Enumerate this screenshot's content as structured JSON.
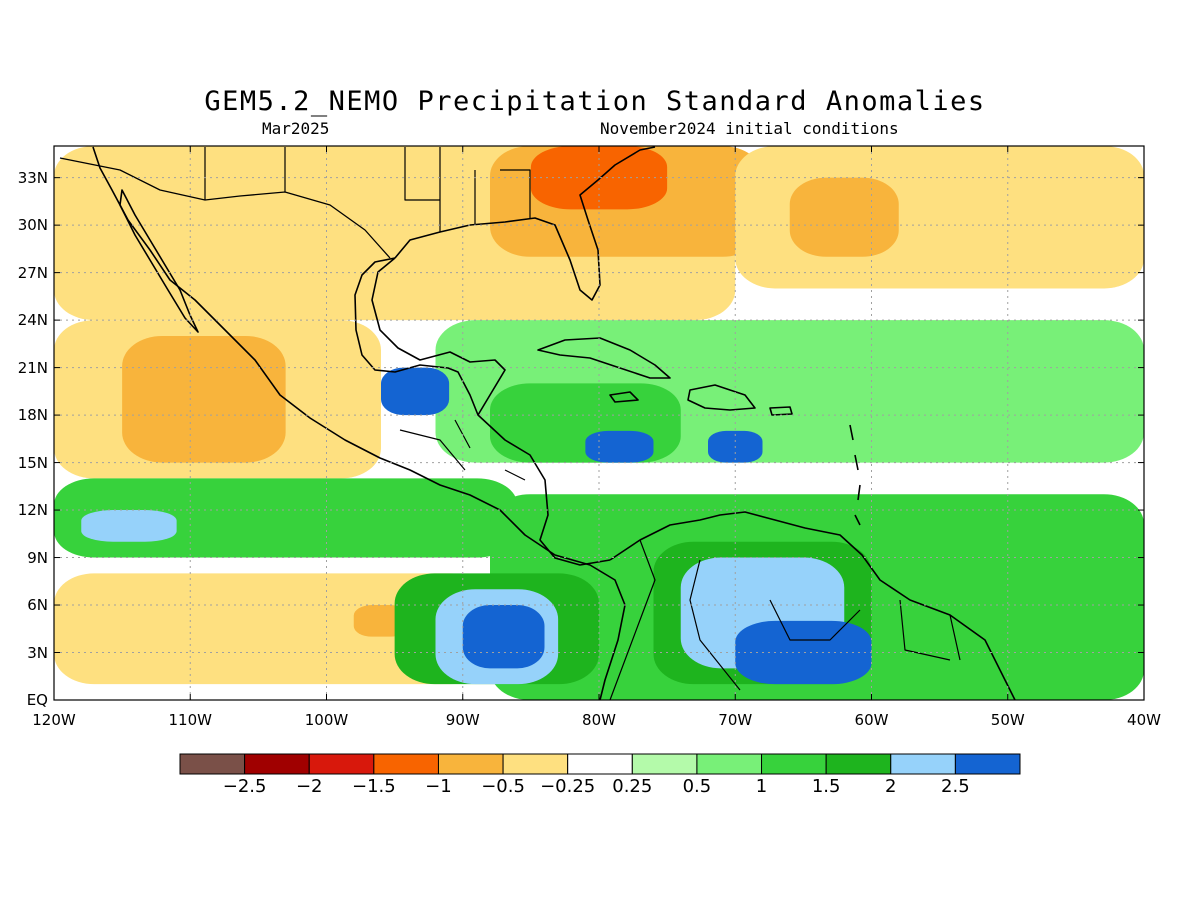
{
  "title": "GEM5.2_NEMO Precipitation Standard Anomalies",
  "valid_month": "Mar2025",
  "initial_conditions": "November2024 initial conditions",
  "map": {
    "lon_range": [
      -120,
      -40
    ],
    "lat_range": [
      0,
      35
    ],
    "lat_ticks": [
      {
        "value": 0,
        "label": "EQ"
      },
      {
        "value": 3,
        "label": "3N"
      },
      {
        "value": 6,
        "label": "6N"
      },
      {
        "value": 9,
        "label": "9N"
      },
      {
        "value": 12,
        "label": "12N"
      },
      {
        "value": 15,
        "label": "15N"
      },
      {
        "value": 18,
        "label": "18N"
      },
      {
        "value": 21,
        "label": "21N"
      },
      {
        "value": 24,
        "label": "24N"
      },
      {
        "value": 27,
        "label": "27N"
      },
      {
        "value": 30,
        "label": "30N"
      },
      {
        "value": 33,
        "label": "33N"
      }
    ],
    "lon_ticks": [
      {
        "value": -120,
        "label": "120W"
      },
      {
        "value": -110,
        "label": "110W"
      },
      {
        "value": -100,
        "label": "100W"
      },
      {
        "value": -90,
        "label": "90W"
      },
      {
        "value": -80,
        "label": "80W"
      },
      {
        "value": -70,
        "label": "70W"
      },
      {
        "value": -60,
        "label": "60W"
      },
      {
        "value": -50,
        "label": "50W"
      },
      {
        "value": -40,
        "label": "40W"
      }
    ],
    "grid": "dotted"
  },
  "colorbar": {
    "colors": [
      "#7a5048",
      "#a00000",
      "#d8180c",
      "#f86400",
      "#f8b43c",
      "#fee080",
      "#ffffff",
      "#b4faaa",
      "#78f078",
      "#37d23c",
      "#1eb41e",
      "#96d2fa",
      "#1464d2"
    ],
    "labels": [
      "-2.5",
      "-2",
      "-1.5",
      "-1",
      "-0.5",
      "-0.25",
      "0.25",
      "0.5",
      "1",
      "1.5",
      "2",
      "2.5"
    ]
  },
  "anomaly_regions": [
    {
      "lon": [
        -120,
        -70
      ],
      "lat": [
        24,
        35
      ],
      "level": -0.5
    },
    {
      "lon": [
        -88,
        -68
      ],
      "lat": [
        28,
        35
      ],
      "level": -1
    },
    {
      "lon": [
        -85,
        -75
      ],
      "lat": [
        31,
        35
      ],
      "level": -1.5
    },
    {
      "lon": [
        -70,
        -40
      ],
      "lat": [
        26,
        35
      ],
      "level": -0.5
    },
    {
      "lon": [
        -66,
        -58
      ],
      "lat": [
        28,
        33
      ],
      "level": -1
    },
    {
      "lon": [
        -120,
        -96
      ],
      "lat": [
        14,
        24
      ],
      "level": -0.5
    },
    {
      "lon": [
        -115,
        -103
      ],
      "lat": [
        15,
        23
      ],
      "level": -1
    },
    {
      "lon": [
        -120,
        -88
      ],
      "lat": [
        1,
        8
      ],
      "level": -0.5
    },
    {
      "lon": [
        -98,
        -94
      ],
      "lat": [
        4,
        6
      ],
      "level": -1
    },
    {
      "lon": [
        -92,
        -40
      ],
      "lat": [
        15,
        24
      ],
      "level": 0.5
    },
    {
      "lon": [
        -88,
        -74
      ],
      "lat": [
        15,
        20
      ],
      "level": 1
    },
    {
      "lon": [
        -120,
        -86
      ],
      "lat": [
        9,
        14
      ],
      "level": 1
    },
    {
      "lon": [
        -88,
        -40
      ],
      "lat": [
        0,
        13
      ],
      "level": 1
    },
    {
      "lon": [
        -95,
        -80
      ],
      "lat": [
        1,
        8
      ],
      "level": 1.5
    },
    {
      "lon": [
        -92,
        -83
      ],
      "lat": [
        1,
        7
      ],
      "level": 2
    },
    {
      "lon": [
        -90,
        -84
      ],
      "lat": [
        2,
        6
      ],
      "level": 2.5
    },
    {
      "lon": [
        -76,
        -60
      ],
      "lat": [
        1,
        10
      ],
      "level": 1.5
    },
    {
      "lon": [
        -74,
        -62
      ],
      "lat": [
        2,
        9
      ],
      "level": 2
    },
    {
      "lon": [
        -70,
        -60
      ],
      "lat": [
        1,
        5
      ],
      "level": 2.5
    },
    {
      "lon": [
        -96,
        -91
      ],
      "lat": [
        18,
        21
      ],
      "level": 2.5
    },
    {
      "lon": [
        -81,
        -76
      ],
      "lat": [
        15,
        17
      ],
      "level": 2.5
    },
    {
      "lon": [
        -72,
        -68
      ],
      "lat": [
        15,
        17
      ],
      "level": 2.5
    },
    {
      "lon": [
        -118,
        -111
      ],
      "lat": [
        10,
        12
      ],
      "level": 2
    }
  ]
}
